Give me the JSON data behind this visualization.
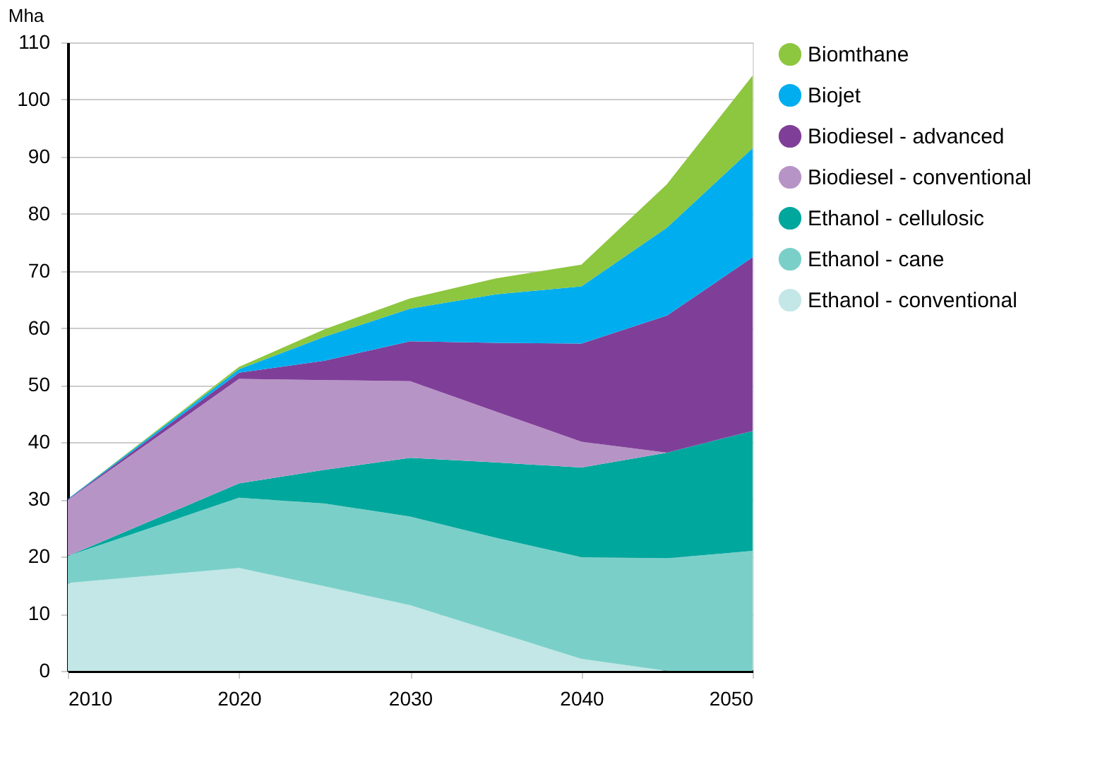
{
  "chart_data": {
    "type": "area",
    "stacked": true,
    "ylabel": "Mha",
    "x": [
      2010,
      2020,
      2025,
      2030,
      2035,
      2040,
      2045,
      2050
    ],
    "xlim": [
      2010,
      2050
    ],
    "xticks": [
      2010,
      2020,
      2030,
      2040,
      2050
    ],
    "ylim": [
      0,
      110
    ],
    "yticks": [
      0,
      10,
      20,
      30,
      40,
      50,
      60,
      70,
      80,
      90,
      100,
      110
    ],
    "grid": "y",
    "legend": "right",
    "series": [
      {
        "name": "Ethanol - conventional",
        "color": "#c2e7e6",
        "values": [
          15.4,
          18.0,
          14.8,
          11.5,
          6.8,
          2.1,
          0,
          0
        ]
      },
      {
        "name": "Ethanol - cane",
        "color": "#7ad0c9",
        "values": [
          4.7,
          12.3,
          14.5,
          15.5,
          16.5,
          17.8,
          19.7,
          21.0
        ]
      },
      {
        "name": "Ethanol - cellulosic",
        "color": "#00a79d",
        "values": [
          0,
          2.5,
          5.9,
          10.3,
          13.2,
          15.7,
          18.5,
          21.0
        ]
      },
      {
        "name": "Biodiesel - conventional",
        "color": "#b794c6",
        "values": [
          9.8,
          18.3,
          15.7,
          13.4,
          8.9,
          4.5,
          0,
          0
        ]
      },
      {
        "name": "Biodiesel - advanced",
        "color": "#7f3f98",
        "values": [
          0.1,
          1.1,
          3.4,
          7.0,
          12.0,
          17.2,
          24.0,
          30.4
        ]
      },
      {
        "name": "Biojet",
        "color": "#00aeef",
        "values": [
          0.1,
          0.6,
          4.2,
          5.7,
          8.5,
          10.0,
          15.4,
          19.1
        ]
      },
      {
        "name": "Biomthane",
        "color": "#8dc63f",
        "values": [
          0,
          0.4,
          1.3,
          1.8,
          2.8,
          3.8,
          7.6,
          12.7
        ]
      }
    ]
  }
}
